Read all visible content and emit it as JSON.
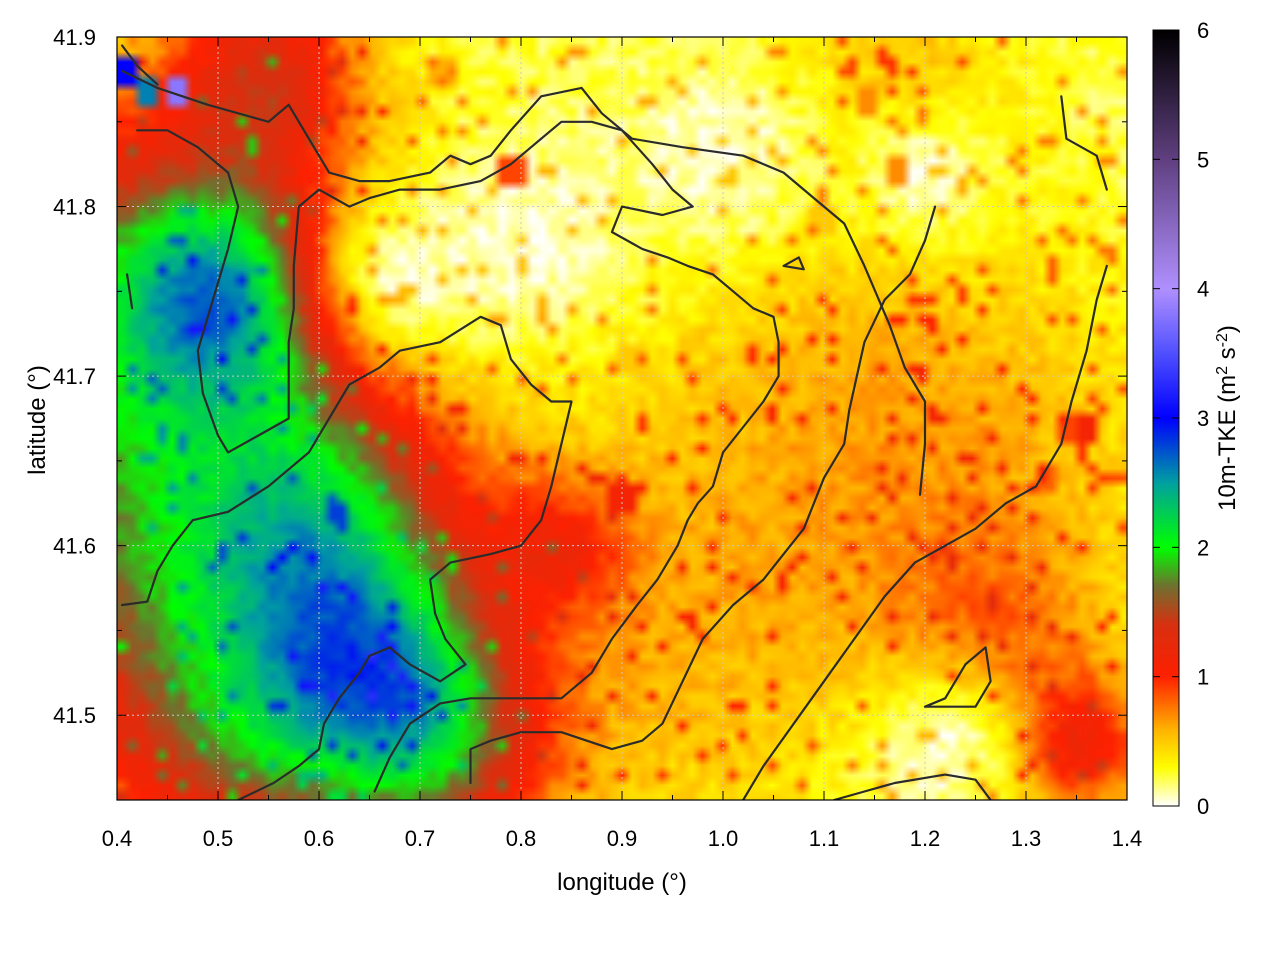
{
  "chart_data": {
    "type": "heatmap",
    "title": "",
    "xlabel": "longitude (°)",
    "ylabel": "latitude (°)",
    "colorbar_label_main": "10m-TKE (m",
    "colorbar_label_sup1": "2",
    "colorbar_label_mid": " s",
    "colorbar_label_sup2": "-2",
    "colorbar_label_end": ")",
    "xlim": [
      0.4,
      1.4
    ],
    "ylim": [
      41.45,
      41.9
    ],
    "clim": [
      0,
      6
    ],
    "xticks": [
      "0.4",
      "0.5",
      "0.6",
      "0.7",
      "0.8",
      "0.9",
      "1.0",
      "1.1",
      "1.2",
      "1.3",
      "1.4"
    ],
    "yticks": [
      "41.5",
      "41.6",
      "41.7",
      "41.8",
      "41.9"
    ],
    "cticks": [
      "0",
      "1",
      "2",
      "3",
      "4",
      "5",
      "6"
    ],
    "grid": true,
    "colormap": [
      {
        "v": 0.0,
        "color": "#ffffff"
      },
      {
        "v": 0.3,
        "color": "#ffff00"
      },
      {
        "v": 0.6,
        "color": "#ffb000"
      },
      {
        "v": 1.0,
        "color": "#ff2000"
      },
      {
        "v": 1.4,
        "color": "#d83010"
      },
      {
        "v": 1.7,
        "color": "#707030"
      },
      {
        "v": 2.0,
        "color": "#00ff00"
      },
      {
        "v": 2.5,
        "color": "#00a0a0"
      },
      {
        "v": 3.0,
        "color": "#0000ff"
      },
      {
        "v": 3.5,
        "color": "#5050ff"
      },
      {
        "v": 4.0,
        "color": "#b090ff"
      },
      {
        "v": 5.0,
        "color": "#604080"
      },
      {
        "v": 6.0,
        "color": "#000000"
      }
    ],
    "field_sources": [
      {
        "lon": 0.43,
        "lat": 41.74,
        "r": 0.18,
        "v": 1.15
      },
      {
        "lon": 0.45,
        "lat": 41.58,
        "r": 0.16,
        "v": 1.05
      },
      {
        "lon": 0.5,
        "lat": 41.75,
        "r": 0.08,
        "v": 1.25
      },
      {
        "lon": 0.61,
        "lat": 41.61,
        "r": 0.09,
        "v": 0.95
      },
      {
        "lon": 0.68,
        "lat": 41.52,
        "r": 0.08,
        "v": 1.0
      },
      {
        "lon": 0.6,
        "lat": 41.52,
        "r": 0.1,
        "v": 0.7
      },
      {
        "lon": 0.72,
        "lat": 41.47,
        "r": 0.08,
        "v": 0.8
      },
      {
        "lon": 0.55,
        "lat": 41.88,
        "r": 0.06,
        "v": 0.85
      },
      {
        "lon": 0.52,
        "lat": 41.47,
        "r": 0.09,
        "v": 0.55
      },
      {
        "lon": 0.84,
        "lat": 41.6,
        "r": 0.05,
        "v": 0.55
      },
      {
        "lon": 1.35,
        "lat": 41.48,
        "r": 0.05,
        "v": 0.9
      },
      {
        "lon": 1.27,
        "lat": 41.54,
        "r": 0.08,
        "v": 0.45
      },
      {
        "lon": 1.05,
        "lat": 41.7,
        "r": 0.2,
        "v": 0.25
      },
      {
        "lon": 1.25,
        "lat": 41.65,
        "r": 0.15,
        "v": 0.3
      },
      {
        "lon": 0.95,
        "lat": 41.52,
        "r": 0.15,
        "v": 0.3
      },
      {
        "lon": 1.18,
        "lat": 41.88,
        "r": 0.08,
        "v": 0.3
      }
    ],
    "field_clear": [
      {
        "lon": 0.8,
        "lat": 41.78,
        "r": 0.09
      },
      {
        "lon": 0.68,
        "lat": 41.76,
        "r": 0.06
      },
      {
        "lon": 1.0,
        "lat": 41.83,
        "r": 0.07
      },
      {
        "lon": 1.22,
        "lat": 41.48,
        "r": 0.06
      },
      {
        "lon": 1.2,
        "lat": 41.82,
        "r": 0.05
      }
    ],
    "hotspots": [
      {
        "lon": 0.43,
        "lat": 41.87,
        "v": 2.6
      },
      {
        "lon": 0.46,
        "lat": 41.87,
        "v": 3.8
      },
      {
        "lon": 0.405,
        "lat": 41.88,
        "v": 3.0
      },
      {
        "lon": 0.44,
        "lat": 41.73,
        "v": 2.2
      },
      {
        "lon": 0.62,
        "lat": 41.62,
        "v": 2.8
      },
      {
        "lon": 0.63,
        "lat": 41.63,
        "v": 1.9
      },
      {
        "lon": 0.67,
        "lat": 41.62,
        "v": 1.9
      },
      {
        "lon": 0.57,
        "lat": 41.69,
        "v": 1.5
      },
      {
        "lon": 0.5,
        "lat": 41.76,
        "v": 1.6
      },
      {
        "lon": 0.645,
        "lat": 41.6,
        "v": 1.3
      },
      {
        "lon": 0.9,
        "lat": 41.63,
        "v": 1.1
      },
      {
        "lon": 0.79,
        "lat": 41.82,
        "v": 0.9
      },
      {
        "lon": 1.36,
        "lat": 41.67,
        "v": 1.1
      },
      {
        "lon": 1.34,
        "lat": 41.67,
        "v": 0.9
      },
      {
        "lon": 1.32,
        "lat": 41.64,
        "v": 0.8
      },
      {
        "lon": 1.29,
        "lat": 41.68,
        "v": 0.6
      },
      {
        "lon": 0.52,
        "lat": 41.54,
        "v": 1.0
      },
      {
        "lon": 0.91,
        "lat": 41.71,
        "v": 0.5
      },
      {
        "lon": 1.14,
        "lat": 41.86,
        "v": 0.7
      },
      {
        "lon": 1.17,
        "lat": 41.82,
        "v": 0.7
      },
      {
        "lon": 1.1,
        "lat": 41.79,
        "v": 0.5
      },
      {
        "lon": 0.53,
        "lat": 41.88,
        "v": 0.8
      },
      {
        "lon": 0.72,
        "lat": 41.88,
        "v": 0.6
      },
      {
        "lon": 0.39,
        "lat": 41.76,
        "v": 0.5
      }
    ],
    "contours": [
      [
        [
          0.405,
          41.88
        ],
        [
          0.44,
          41.87
        ],
        [
          0.49,
          41.86
        ],
        [
          0.55,
          41.85
        ],
        [
          0.57,
          41.86
        ],
        [
          0.59,
          41.84
        ],
        [
          0.61,
          41.82
        ],
        [
          0.64,
          41.815
        ],
        [
          0.67,
          41.815
        ],
        [
          0.71,
          41.82
        ],
        [
          0.73,
          41.83
        ],
        [
          0.75,
          41.825
        ],
        [
          0.77,
          41.83
        ],
        [
          0.79,
          41.845
        ],
        [
          0.82,
          41.865
        ],
        [
          0.86,
          41.87
        ],
        [
          0.88,
          41.855
        ],
        [
          0.91,
          41.84
        ],
        [
          0.96,
          41.835
        ],
        [
          1.02,
          41.83
        ],
        [
          1.06,
          41.82
        ],
        [
          1.1,
          41.8
        ],
        [
          1.12,
          41.79
        ],
        [
          1.14,
          41.765
        ],
        [
          1.165,
          41.73
        ],
        [
          1.18,
          41.705
        ],
        [
          1.2,
          41.685
        ],
        [
          1.2,
          41.66
        ],
        [
          1.195,
          41.63
        ]
      ],
      [
        [
          0.42,
          41.845
        ],
        [
          0.45,
          41.845
        ],
        [
          0.48,
          41.835
        ],
        [
          0.51,
          41.82
        ],
        [
          0.52,
          41.8
        ],
        [
          0.51,
          41.775
        ],
        [
          0.495,
          41.745
        ],
        [
          0.48,
          41.715
        ],
        [
          0.485,
          41.69
        ],
        [
          0.5,
          41.665
        ],
        [
          0.51,
          41.655
        ],
        [
          0.54,
          41.665
        ],
        [
          0.57,
          41.675
        ],
        [
          0.57,
          41.7
        ],
        [
          0.57,
          41.72
        ],
        [
          0.575,
          41.74
        ],
        [
          0.575,
          41.765
        ],
        [
          0.58,
          41.8
        ],
        [
          0.6,
          41.81
        ],
        [
          0.63,
          41.8
        ],
        [
          0.65,
          41.805
        ],
        [
          0.68,
          41.81
        ],
        [
          0.72,
          41.81
        ],
        [
          0.76,
          41.815
        ],
        [
          0.79,
          41.825
        ],
        [
          0.82,
          41.84
        ]
      ],
      [
        [
          0.405,
          41.565
        ],
        [
          0.43,
          41.567
        ],
        [
          0.44,
          41.585
        ],
        [
          0.455,
          41.6
        ],
        [
          0.475,
          41.615
        ],
        [
          0.51,
          41.62
        ],
        [
          0.55,
          41.635
        ],
        [
          0.59,
          41.655
        ],
        [
          0.61,
          41.675
        ],
        [
          0.63,
          41.695
        ],
        [
          0.66,
          41.705
        ],
        [
          0.68,
          41.715
        ],
        [
          0.72,
          41.72
        ],
        [
          0.76,
          41.735
        ],
        [
          0.78,
          41.73
        ],
        [
          0.79,
          41.71
        ],
        [
          0.81,
          41.695
        ],
        [
          0.83,
          41.685
        ],
        [
          0.85,
          41.685
        ],
        [
          0.84,
          41.66
        ],
        [
          0.83,
          41.635
        ],
        [
          0.82,
          41.615
        ],
        [
          0.8,
          41.6
        ],
        [
          0.77,
          41.595
        ],
        [
          0.73,
          41.59
        ],
        [
          0.71,
          41.58
        ],
        [
          0.715,
          41.56
        ],
        [
          0.725,
          41.545
        ],
        [
          0.745,
          41.53
        ],
        [
          0.72,
          41.52
        ],
        [
          0.69,
          41.53
        ],
        [
          0.67,
          41.54
        ],
        [
          0.65,
          41.535
        ],
        [
          0.64,
          41.525
        ],
        [
          0.62,
          41.51
        ],
        [
          0.605,
          41.495
        ],
        [
          0.6,
          41.48
        ],
        [
          0.58,
          41.47
        ],
        [
          0.555,
          41.46
        ],
        [
          0.52,
          41.45
        ]
      ],
      [
        [
          0.655,
          41.455
        ],
        [
          0.67,
          41.475
        ],
        [
          0.69,
          41.495
        ],
        [
          0.72,
          41.507
        ],
        [
          0.75,
          41.51
        ],
        [
          0.79,
          41.51
        ],
        [
          0.84,
          41.51
        ],
        [
          0.87,
          41.525
        ],
        [
          0.89,
          41.545
        ],
        [
          0.915,
          41.565
        ],
        [
          0.935,
          41.58
        ],
        [
          0.955,
          41.6
        ],
        [
          0.965,
          41.615
        ],
        [
          0.975,
          41.625
        ],
        [
          0.99,
          41.635
        ],
        [
          1.0,
          41.655
        ],
        [
          1.02,
          41.67
        ],
        [
          1.04,
          41.685
        ],
        [
          1.055,
          41.7
        ],
        [
          1.055,
          41.72
        ],
        [
          1.05,
          41.735
        ],
        [
          1.03,
          41.74
        ],
        [
          1.01,
          41.75
        ],
        [
          0.99,
          41.76
        ],
        [
          0.965,
          41.765
        ],
        [
          0.945,
          41.77
        ],
        [
          0.92,
          41.775
        ],
        [
          0.89,
          41.785
        ],
        [
          0.9,
          41.8
        ],
        [
          0.94,
          41.795
        ],
        [
          0.97,
          41.8
        ],
        [
          0.95,
          41.81
        ],
        [
          0.93,
          41.825
        ],
        [
          0.9,
          41.845
        ],
        [
          0.87,
          41.85
        ],
        [
          0.84,
          41.85
        ],
        [
          0.82,
          41.84
        ]
      ],
      [
        [
          0.75,
          41.46
        ],
        [
          0.75,
          41.48
        ],
        [
          0.77,
          41.485
        ],
        [
          0.8,
          41.49
        ],
        [
          0.84,
          41.49
        ],
        [
          0.89,
          41.48
        ],
        [
          0.92,
          41.485
        ],
        [
          0.94,
          41.495
        ],
        [
          0.96,
          41.52
        ],
        [
          0.98,
          41.545
        ],
        [
          1.01,
          41.565
        ],
        [
          1.04,
          41.58
        ],
        [
          1.06,
          41.595
        ],
        [
          1.08,
          41.61
        ],
        [
          1.1,
          41.64
        ],
        [
          1.12,
          41.66
        ],
        [
          1.125,
          41.68
        ],
        [
          1.14,
          41.72
        ],
        [
          1.16,
          41.745
        ],
        [
          1.185,
          41.76
        ],
        [
          1.2,
          41.78
        ],
        [
          1.21,
          41.8
        ]
      ],
      [
        [
          1.02,
          41.45
        ],
        [
          1.04,
          41.47
        ],
        [
          1.07,
          41.495
        ],
        [
          1.1,
          41.52
        ],
        [
          1.13,
          41.545
        ],
        [
          1.16,
          41.57
        ],
        [
          1.19,
          41.59
        ],
        [
          1.22,
          41.6
        ],
        [
          1.25,
          41.61
        ],
        [
          1.28,
          41.625
        ],
        [
          1.31,
          41.635
        ],
        [
          1.335,
          41.66
        ],
        [
          1.345,
          41.685
        ],
        [
          1.36,
          41.715
        ],
        [
          1.37,
          41.745
        ],
        [
          1.38,
          41.765
        ]
      ],
      [
        [
          1.2,
          41.505
        ],
        [
          1.25,
          41.505
        ],
        [
          1.265,
          41.52
        ],
        [
          1.26,
          41.54
        ],
        [
          1.24,
          41.53
        ],
        [
          1.22,
          41.51
        ],
        [
          1.2,
          41.505
        ]
      ],
      [
        [
          1.11,
          41.45
        ],
        [
          1.14,
          41.455
        ],
        [
          1.17,
          41.46
        ],
        [
          1.22,
          41.465
        ],
        [
          1.25,
          41.462
        ],
        [
          1.265,
          41.45
        ]
      ],
      [
        [
          1.06,
          41.765
        ],
        [
          1.075,
          41.77
        ],
        [
          1.08,
          41.763
        ],
        [
          1.06,
          41.765
        ]
      ],
      [
        [
          1.335,
          41.865
        ],
        [
          1.34,
          41.84
        ],
        [
          1.37,
          41.83
        ],
        [
          1.38,
          41.81
        ]
      ],
      [
        [
          0.41,
          41.76
        ],
        [
          0.415,
          41.74
        ]
      ],
      [
        [
          0.44,
          41.872
        ],
        [
          0.42,
          41.883
        ],
        [
          0.405,
          41.895
        ]
      ]
    ]
  }
}
